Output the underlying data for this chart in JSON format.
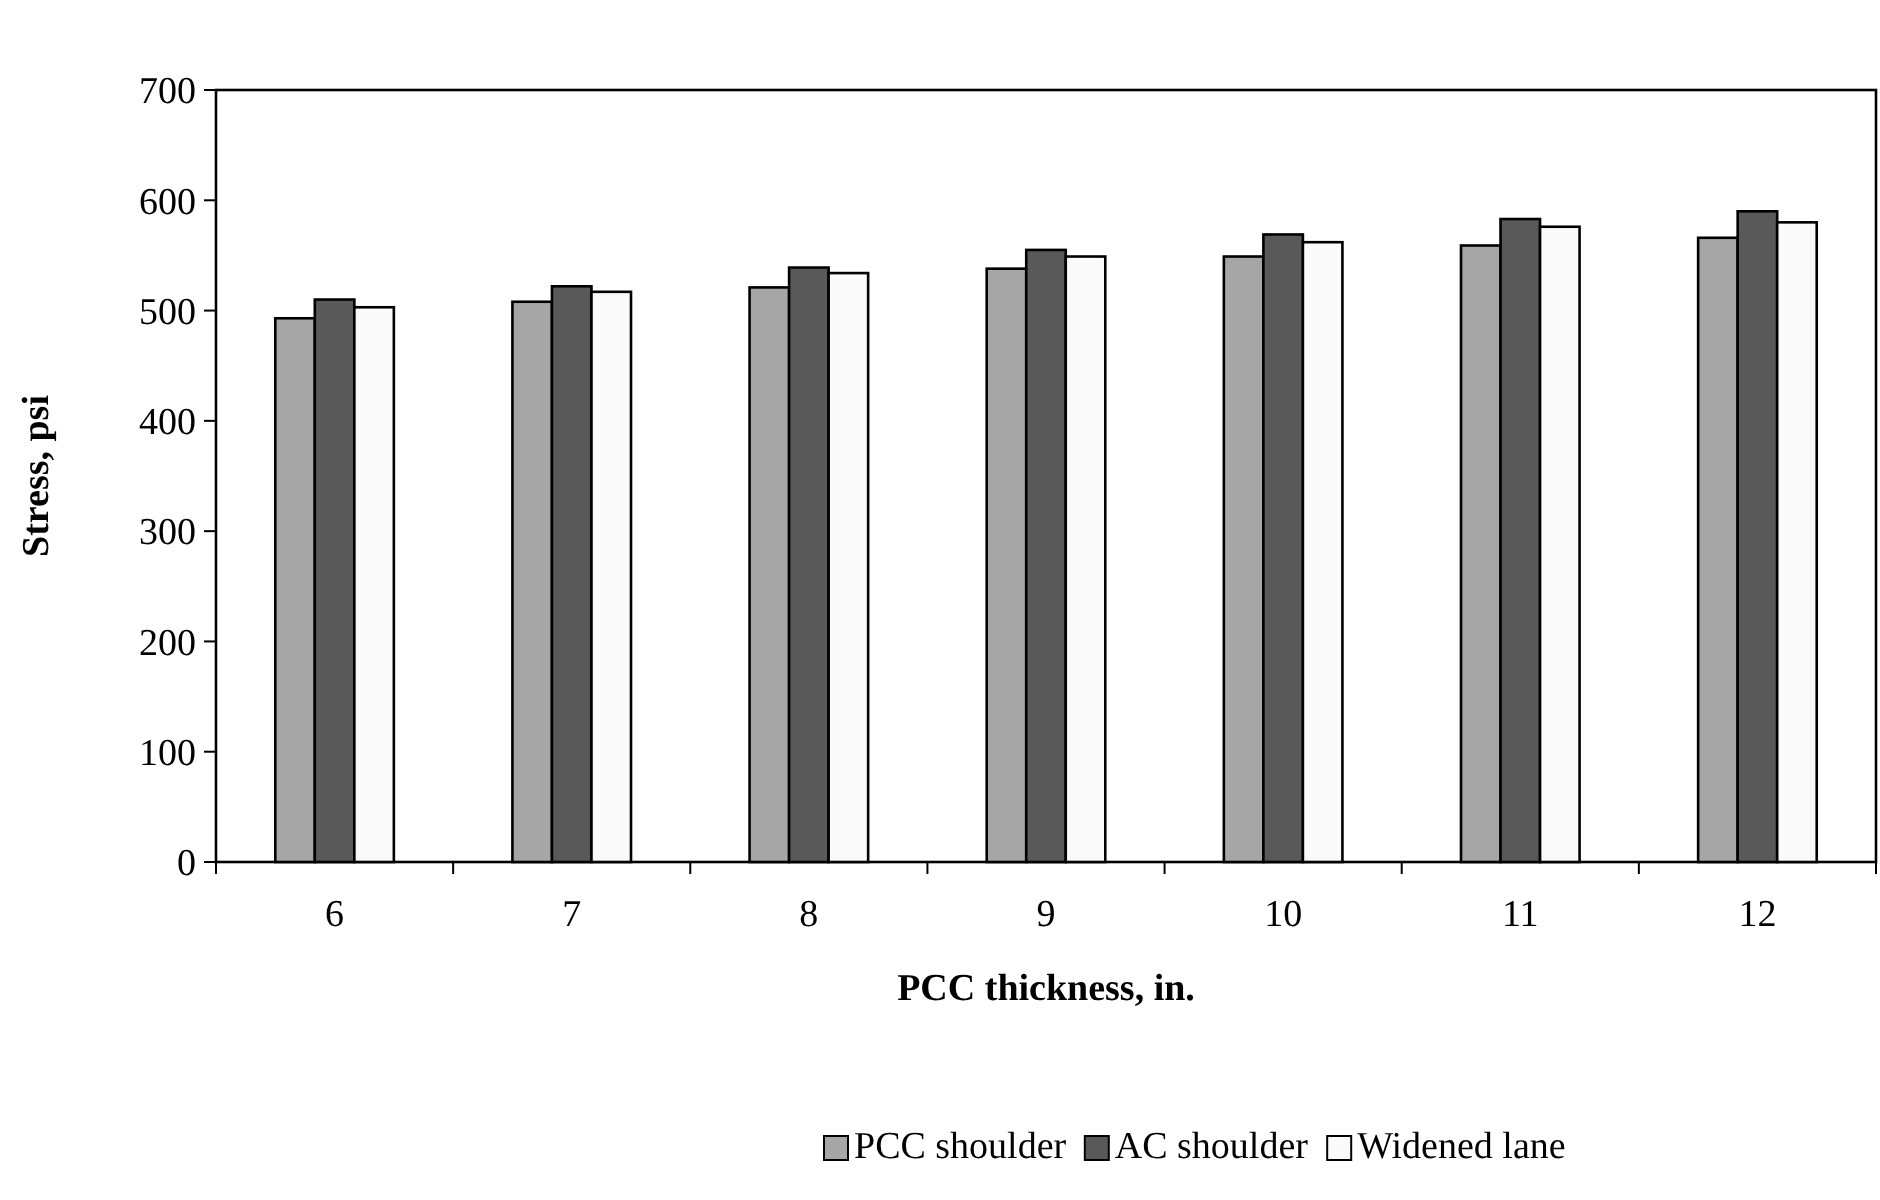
{
  "chart_data": {
    "type": "bar",
    "xlabel": "PCC thickness, in.",
    "ylabel": "Stress, psi",
    "categories": [
      "6",
      "7",
      "8",
      "9",
      "10",
      "11",
      "12"
    ],
    "series": [
      {
        "name": "PCC shoulder",
        "color": "#a6a6a6",
        "values": [
          493,
          508,
          521,
          538,
          549,
          559,
          566
        ]
      },
      {
        "name": "AC shoulder",
        "color": "#595959",
        "values": [
          510,
          522,
          539,
          555,
          569,
          583,
          590
        ]
      },
      {
        "name": "Widened lane",
        "color": "#fafafa",
        "values": [
          503,
          517,
          534,
          549,
          562,
          576,
          580
        ]
      }
    ],
    "ylim": [
      0,
      700
    ],
    "yticks": [
      0,
      100,
      200,
      300,
      400,
      500,
      600,
      700
    ],
    "grid": false,
    "legend": "bottom"
  }
}
